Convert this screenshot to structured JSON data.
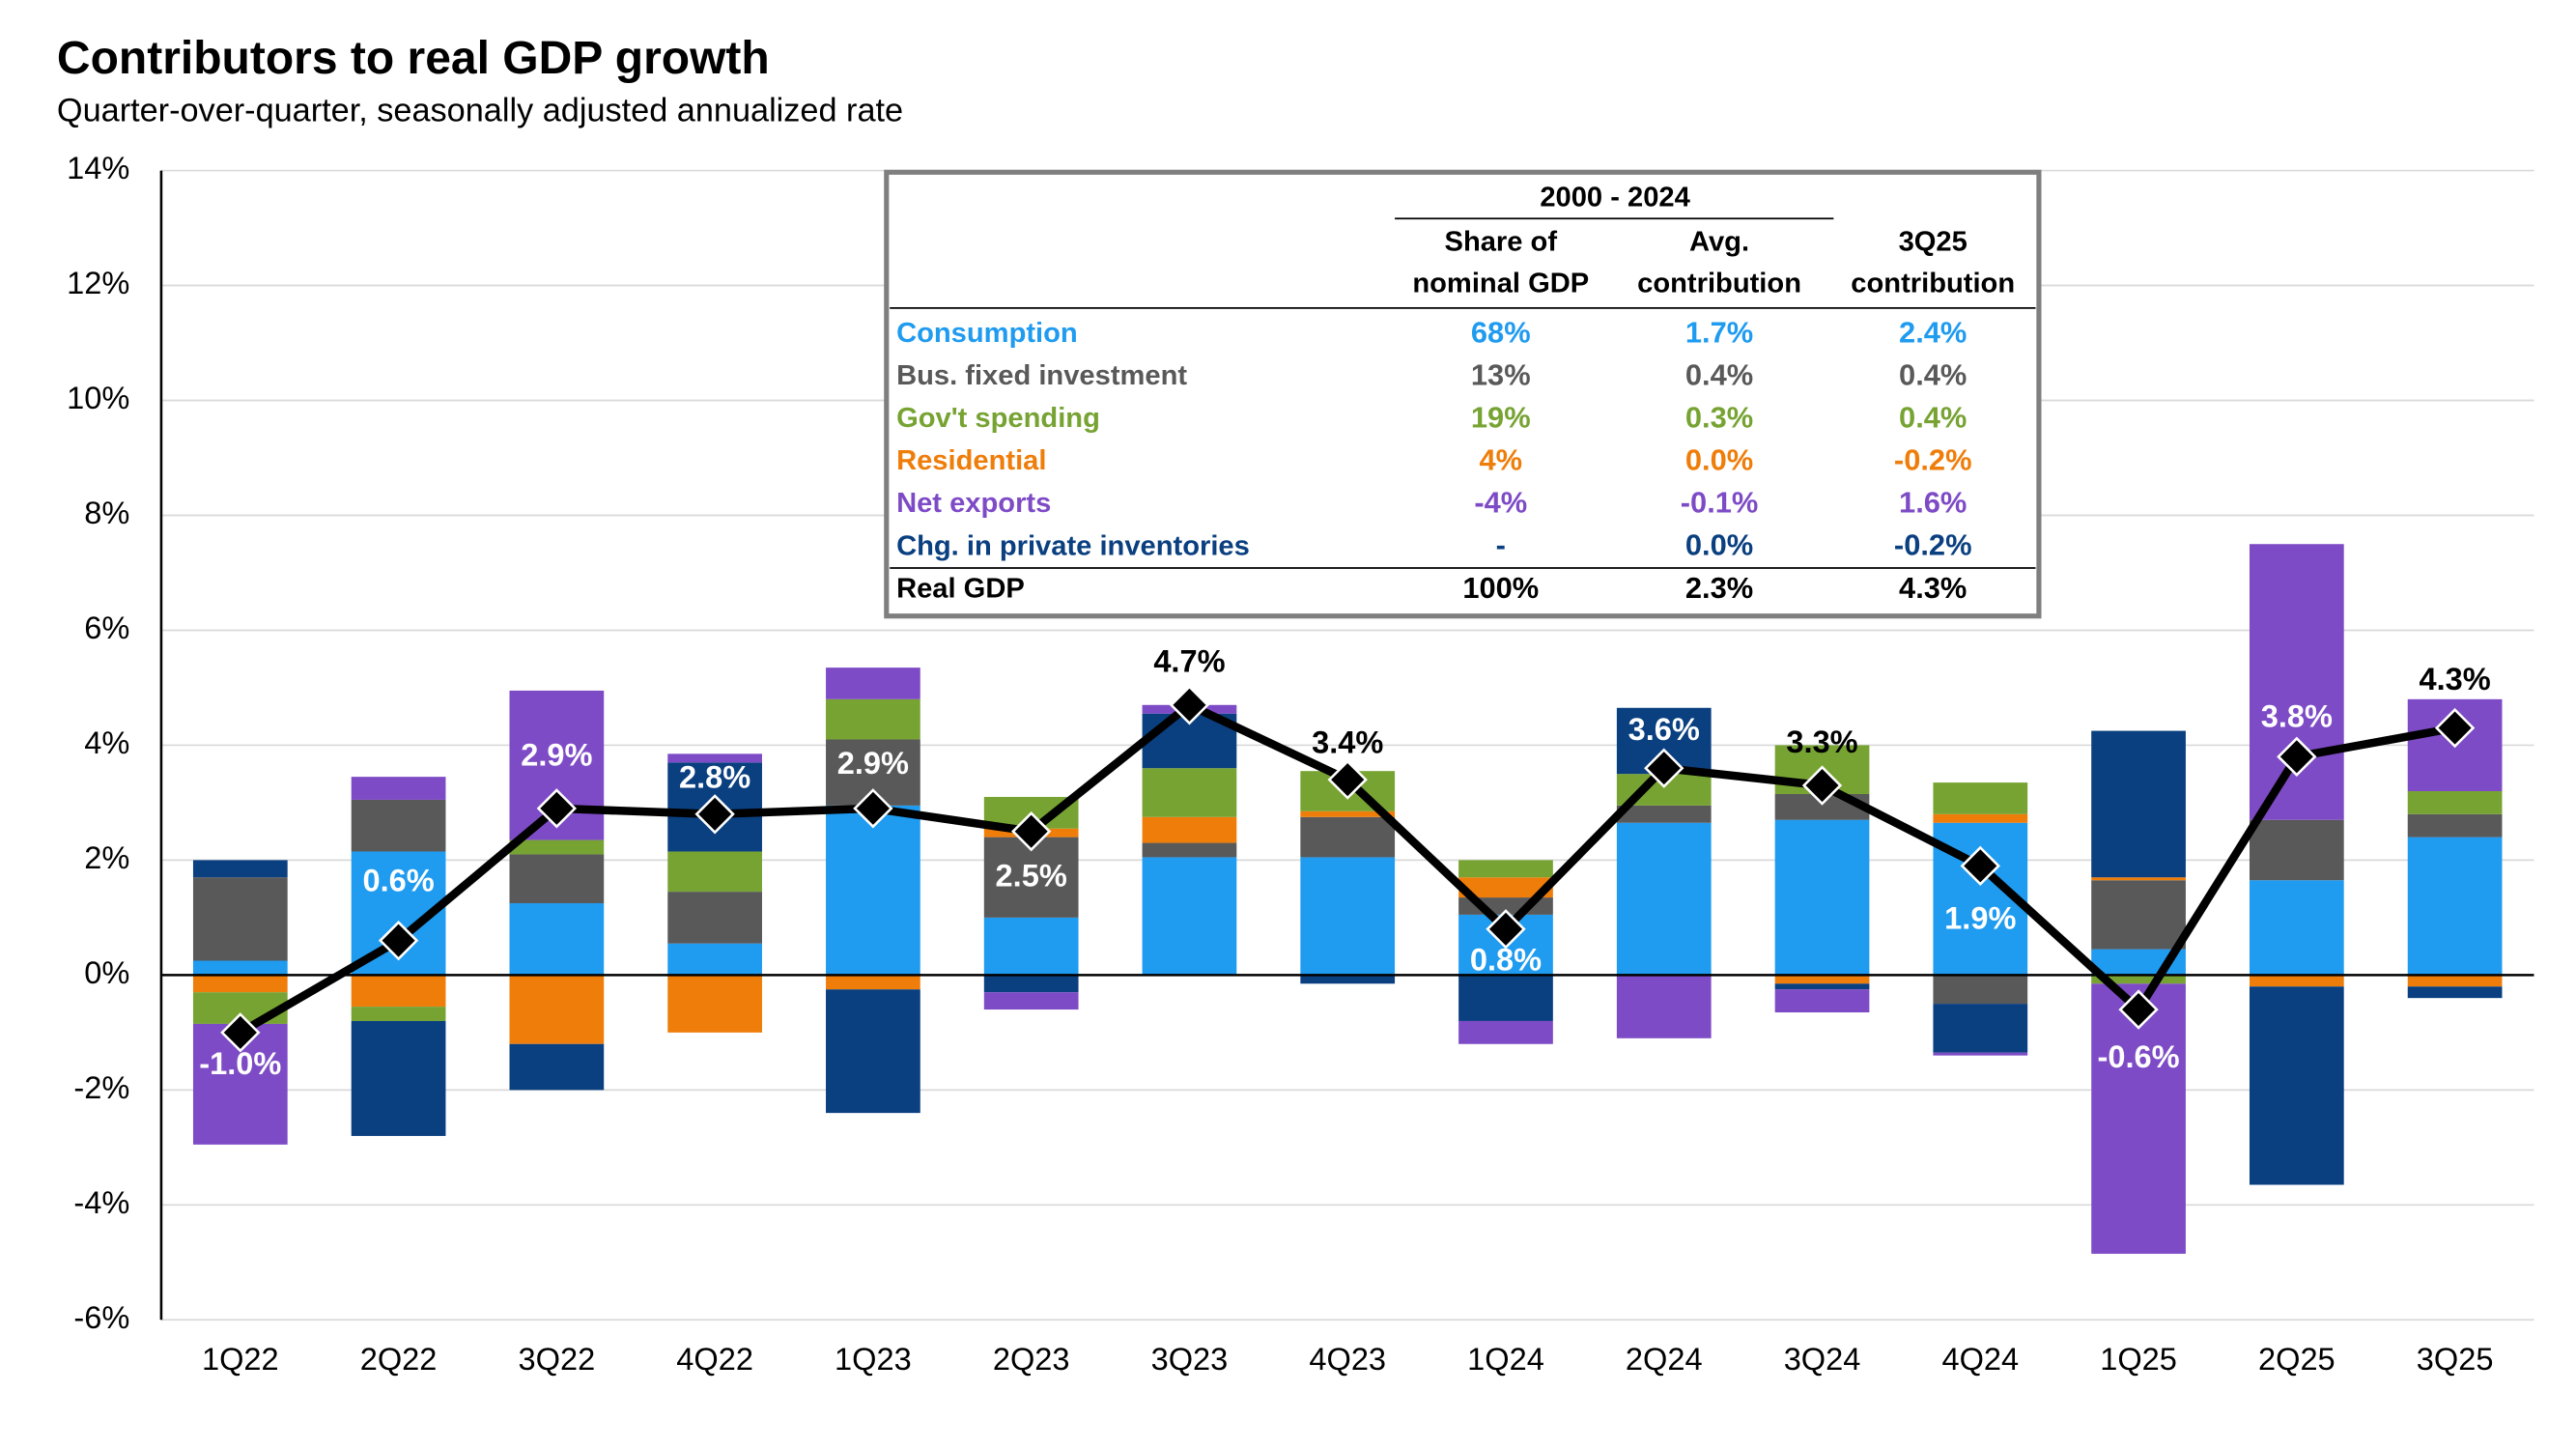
{
  "chart_data": {
    "type": "bar",
    "title": "Contributors to real GDP growth",
    "subtitle": "Quarter-over-quarter, seasonally adjusted annualized rate",
    "categories": [
      "1Q22",
      "2Q22",
      "3Q22",
      "4Q22",
      "1Q23",
      "2Q23",
      "3Q23",
      "4Q23",
      "1Q24",
      "2Q24",
      "3Q24",
      "4Q24",
      "1Q25",
      "2Q25",
      "3Q25"
    ],
    "series": [
      {
        "name": "Consumption",
        "color": "#1f9bf0",
        "values": [
          0.25,
          2.15,
          1.25,
          0.55,
          2.95,
          1.0,
          2.05,
          2.05,
          1.05,
          2.65,
          2.7,
          2.65,
          0.45,
          1.65,
          2.4
        ]
      },
      {
        "name": "Bus. fixed investment",
        "color": "#595959",
        "values": [
          1.45,
          0.9,
          0.85,
          0.9,
          1.15,
          1.4,
          0.25,
          0.7,
          0.3,
          0.3,
          0.45,
          -0.5,
          1.2,
          1.05,
          0.4
        ]
      },
      {
        "name": "Gov't spending",
        "color": "#77a333",
        "values": [
          -0.55,
          -0.25,
          0.25,
          0.7,
          0.7,
          0.55,
          0.85,
          0.7,
          0.3,
          0.55,
          0.85,
          0.55,
          -0.15,
          0,
          0.4
        ]
      },
      {
        "name": "Residential",
        "color": "#ef7d0a",
        "values": [
          -0.3,
          -0.55,
          -1.2,
          -1.0,
          -0.25,
          0.15,
          0.45,
          0.1,
          0.35,
          0,
          -0.15,
          0.15,
          0.05,
          -0.2,
          -0.2
        ]
      },
      {
        "name": "Net exports",
        "color": "#7e4bc6",
        "values": [
          -2.1,
          0.4,
          2.6,
          0.15,
          0.55,
          -0.3,
          0.15,
          0,
          -0.4,
          -1.1,
          -0.4,
          -0.05,
          -4.7,
          4.8,
          1.6
        ]
      },
      {
        "name": "Chg. in private inventories",
        "color": "#0a3f80",
        "values": [
          0.3,
          -2.0,
          -0.8,
          1.55,
          -2.15,
          -0.3,
          0.95,
          -0.15,
          -0.8,
          1.15,
          -0.1,
          -0.85,
          2.55,
          -3.45,
          -0.2
        ]
      }
    ],
    "line": {
      "name": "Real GDP",
      "color": "#000000",
      "values": [
        -1.0,
        0.6,
        2.9,
        2.8,
        2.9,
        2.5,
        4.7,
        3.4,
        0.8,
        3.6,
        3.3,
        1.9,
        -0.6,
        3.8,
        4.3
      ],
      "value_labels": [
        "-1.0%",
        "0.6%",
        "2.9%",
        "2.8%",
        "2.9%",
        "2.5%",
        "4.7%",
        "3.4%",
        "0.8%",
        "3.6%",
        "3.3%",
        "1.9%",
        "-0.6%",
        "3.8%",
        "4.3%"
      ]
    },
    "ylim": [
      -6,
      14
    ],
    "yticks": [
      {
        "value": -6,
        "label": "-6%"
      },
      {
        "value": -4,
        "label": "-4%"
      },
      {
        "value": -2,
        "label": "-2%"
      },
      {
        "value": 0,
        "label": "0%"
      },
      {
        "value": 2,
        "label": "2%"
      },
      {
        "value": 4,
        "label": "4%"
      },
      {
        "value": 6,
        "label": "6%"
      },
      {
        "value": 8,
        "label": "8%"
      },
      {
        "value": 10,
        "label": "10%"
      },
      {
        "value": 12,
        "label": "12%"
      },
      {
        "value": 14,
        "label": "14%"
      }
    ],
    "grid": true
  },
  "table": {
    "group_header": "2000 - 2024",
    "columns": [
      [
        "Share of",
        "nominal GDP"
      ],
      [
        "Avg.",
        "contribution"
      ],
      [
        "3Q25",
        "contribution"
      ]
    ],
    "rows": [
      [
        "68%",
        "1.7%",
        "2.4%"
      ],
      [
        "13%",
        "0.4%",
        "0.4%"
      ],
      [
        "19%",
        "0.3%",
        "0.4%"
      ],
      [
        "4%",
        "0.0%",
        "-0.2%"
      ],
      [
        "-4%",
        "-0.1%",
        "1.6%"
      ],
      [
        "-",
        "0.0%",
        "-0.2%"
      ],
      [
        "100%",
        "2.3%",
        "4.3%"
      ]
    ]
  }
}
